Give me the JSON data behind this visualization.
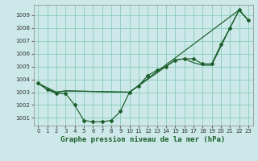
{
  "title": "Graphe pression niveau de la mer (hPa)",
  "title_fontsize": 6.5,
  "bg_color": "#cce8e8",
  "grid_color": "#88ccbb",
  "line_color": "#1a5e2a",
  "xlim": [
    -0.5,
    23.5
  ],
  "ylim": [
    1000.4,
    1009.8
  ],
  "yticks": [
    1001,
    1002,
    1003,
    1004,
    1005,
    1006,
    1007,
    1008,
    1009
  ],
  "xticks": [
    0,
    1,
    2,
    3,
    4,
    5,
    6,
    7,
    8,
    9,
    10,
    11,
    12,
    13,
    14,
    15,
    16,
    17,
    18,
    19,
    20,
    21,
    22,
    23
  ],
  "series1_x": [
    0,
    1,
    2,
    3,
    4,
    5,
    6,
    7,
    8,
    9,
    10,
    11,
    12,
    13,
    14,
    15,
    16,
    17,
    18,
    19,
    20,
    21,
    22,
    23
  ],
  "series1_y": [
    1003.7,
    1003.2,
    1002.9,
    1002.9,
    1002.0,
    1000.8,
    1000.7,
    1000.7,
    1000.8,
    1001.5,
    1003.0,
    1003.5,
    1004.3,
    1004.7,
    1005.0,
    1005.5,
    1005.6,
    1005.6,
    1005.2,
    1005.2,
    1006.7,
    1008.0,
    1009.4,
    1008.6
  ],
  "series2_x": [
    0,
    2,
    3,
    10,
    15,
    16,
    17,
    18,
    19,
    21,
    22,
    23
  ],
  "series2_y": [
    1003.7,
    1003.0,
    1003.1,
    1003.0,
    1005.5,
    1005.6,
    1005.3,
    1005.1,
    1005.1,
    1008.0,
    1009.4,
    1008.6
  ],
  "series3_x": [
    0,
    1,
    2,
    3,
    10,
    22,
    23
  ],
  "series3_y": [
    1003.7,
    1003.2,
    1003.0,
    1003.1,
    1003.0,
    1009.4,
    1008.6
  ],
  "ylabel_color": "#333333",
  "tick_fontsize": 5.0
}
